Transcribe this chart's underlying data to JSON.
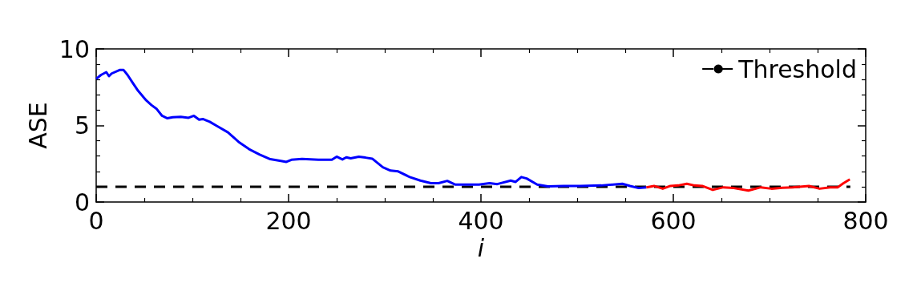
{
  "chart_data": {
    "type": "line",
    "xlabel": "i",
    "ylabel": "ASE",
    "xlim": [
      0,
      800
    ],
    "xticks": [
      0,
      200,
      400,
      600,
      800
    ],
    "ylim": [
      0,
      10
    ],
    "yticks": [
      0,
      5,
      10
    ],
    "grid": false,
    "legend": "top right",
    "marker": "none",
    "series": [
      {
        "color": "#0000ff",
        "x": [
          0,
          5,
          10.5,
          13.3,
          16,
          24.3,
          28.5,
          32.6,
          38,
          43.6,
          52,
          57.5,
          63,
          68.5,
          74,
          79.6,
          88,
          96,
          101.6,
          107,
          111,
          118,
          126,
          137,
          148,
          159,
          170,
          181,
          192,
          197.7,
          203,
          214,
          231,
          245,
          250,
          256,
          260,
          264.6,
          273,
          280,
          287,
          298,
          306,
          314,
          326,
          337,
          348,
          356,
          365,
          373,
          384.6,
          398,
          409,
          417,
          431,
          436,
          442,
          447.5,
          458.5,
          469.6,
          486,
          503,
          525,
          547,
          555,
          564,
          572
        ],
        "values": [
          8.04,
          8.3,
          8.48,
          8.22,
          8.39,
          8.62,
          8.62,
          8.3,
          7.78,
          7.26,
          6.64,
          6.33,
          6.07,
          5.63,
          5.47,
          5.54,
          5.56,
          5.5,
          5.63,
          5.38,
          5.42,
          5.24,
          4.95,
          4.55,
          3.93,
          3.45,
          3.1,
          2.8,
          2.68,
          2.62,
          2.76,
          2.81,
          2.76,
          2.76,
          2.96,
          2.78,
          2.92,
          2.85,
          2.96,
          2.9,
          2.83,
          2.27,
          2.05,
          2.0,
          1.63,
          1.4,
          1.23,
          1.23,
          1.38,
          1.14,
          1.14,
          1.14,
          1.23,
          1.17,
          1.4,
          1.31,
          1.63,
          1.54,
          1.14,
          1.02,
          1.05,
          1.05,
          1.08,
          1.19,
          1.05,
          0.91,
          0.96
        ]
      },
      {
        "color": "#ff0000",
        "x": [
          572,
          580,
          589,
          597,
          605,
          614,
          622,
          630,
          641,
          652,
          663,
          678,
          691,
          702,
          713,
          724,
          741,
          752,
          763,
          771,
          776.6,
          783.5
        ],
        "values": [
          0.96,
          1.05,
          0.87,
          1.05,
          1.08,
          1.19,
          1.08,
          1.05,
          0.79,
          0.96,
          0.91,
          0.75,
          0.96,
          0.87,
          0.93,
          0.96,
          1.05,
          0.87,
          0.96,
          0.96,
          1.22,
          1.48
        ]
      },
      {
        "name": "Threshold",
        "color": "#000000",
        "line_style": "dashed",
        "x": [
          0,
          784
        ],
        "values": [
          1,
          1
        ]
      }
    ]
  }
}
